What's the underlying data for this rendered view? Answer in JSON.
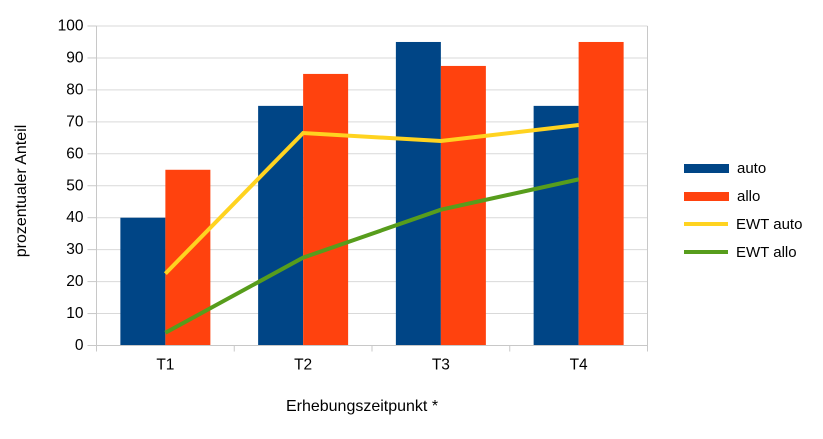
{
  "chart_data": {
    "type": "combo",
    "title": "",
    "categories": [
      "T1",
      "T2",
      "T3",
      "T4"
    ],
    "series": [
      {
        "name": "auto",
        "type": "bar",
        "color": "#004586",
        "values": [
          40,
          75,
          95,
          75
        ]
      },
      {
        "name": "allo",
        "type": "bar",
        "color": "#FF420E",
        "values": [
          55,
          85,
          87.5,
          95
        ]
      },
      {
        "name": "EWT auto",
        "type": "line",
        "color": "#FFD320",
        "values": [
          22.5,
          66.5,
          64,
          69
        ]
      },
      {
        "name": "EWT allo",
        "type": "line",
        "color": "#579D1C",
        "values": [
          4,
          27.5,
          42.5,
          52
        ]
      }
    ],
    "xlabel": "Erhebungszeitpunkt *",
    "ylabel": "prozentualer Anteil",
    "ylim": [
      0,
      100
    ],
    "yticks": [
      0,
      10,
      20,
      30,
      40,
      50,
      60,
      70,
      80,
      90,
      100
    ],
    "grid": "horizontal",
    "legend_position": "right",
    "grid_color": "#d9d9d9",
    "axis_color": "#c8c8c8",
    "text_color": "#000000"
  }
}
